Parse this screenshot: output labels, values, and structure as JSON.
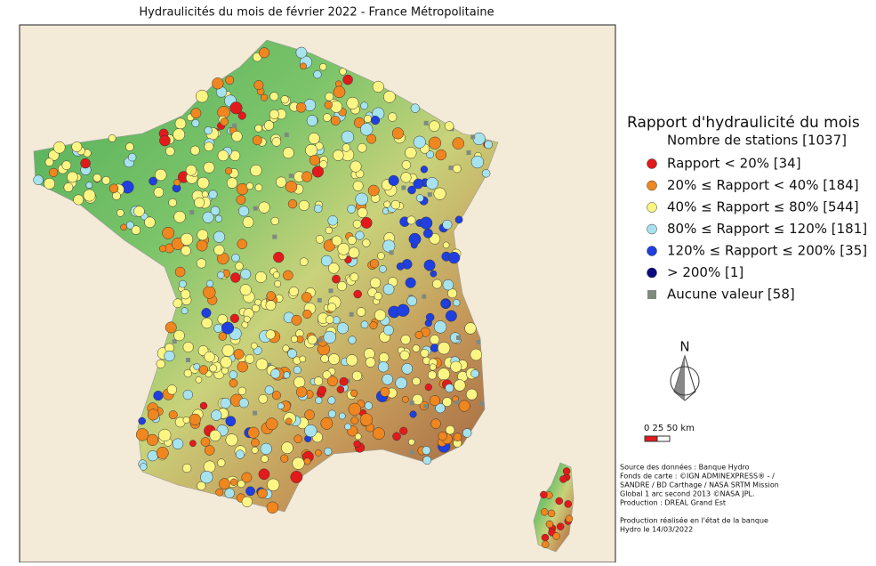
{
  "title": "Hydraulicités du mois de février 2022 - France Métropolitaine",
  "legend": {
    "title": "Rapport d'hydraulicité du mois",
    "subtitle": "Nombre de stations [1037]",
    "items": [
      {
        "label": "Rapport < 20% [34]",
        "color": "#e31a1c",
        "shape": "circle"
      },
      {
        "label": "20% ≤ Rapport < 40% [184]",
        "color": "#f0861f",
        "shape": "circle"
      },
      {
        "label": "40% ≤ Rapport ≤ 80% [544]",
        "color": "#fbf583",
        "shape": "circle"
      },
      {
        "label": "80% ≤ Rapport ≤ 120% [181]",
        "color": "#a6e3ee",
        "shape": "circle"
      },
      {
        "label": "120% ≤ Rapport ≤ 200% [35]",
        "color": "#1f3fe0",
        "shape": "circle"
      },
      {
        "label": "> 200% [1]",
        "color": "#0a0a80",
        "shape": "circle"
      },
      {
        "label": "Aucune valeur [58]",
        "color": "#7f8a7f",
        "shape": "square"
      }
    ]
  },
  "north_label": "N",
  "scale_label": "0  25 50 km",
  "source": [
    "Source des données : Banque Hydro",
    "Fonds de carte : ©IGN ADMINEXPRESS® -  /",
    "SANDRE / BD Carthage / NASA SRTM Mission",
    "Global 1 arc second 2013 ©NASA JPL.",
    "Production : DREAL Grand Est",
    "",
    "Production réalisée en l'état de la banque",
    "Hydro le 14/03/2022"
  ]
}
